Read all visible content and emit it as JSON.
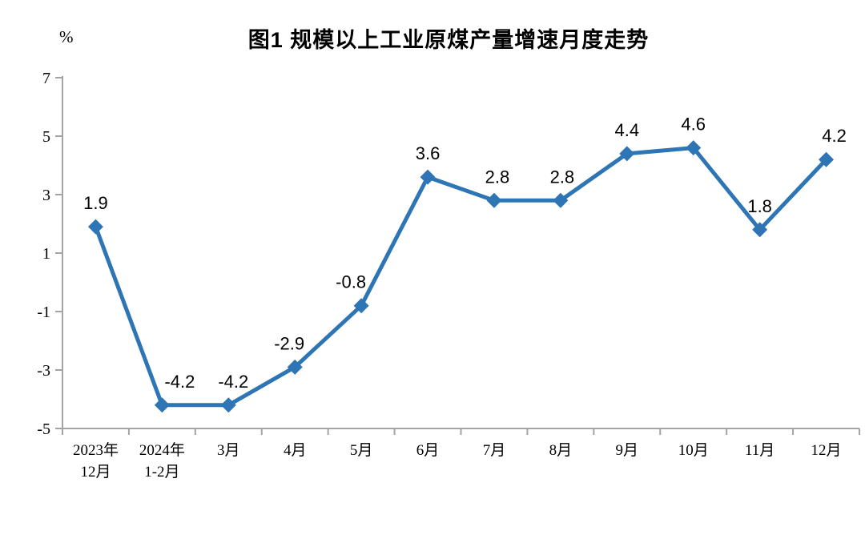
{
  "page": {
    "background": "#FFFFFF"
  },
  "chart_data": {
    "type": "line",
    "title": "图1  规模以上工业原煤产量增速月度走势",
    "ylabel": "%",
    "xlabel": "",
    "categories": [
      "2023年\n12月",
      "2024年\n1-2月",
      "3月",
      "4月",
      "5月",
      "6月",
      "7月",
      "8月",
      "9月",
      "10月",
      "11月",
      "12月"
    ],
    "values": [
      1.9,
      -4.2,
      -4.2,
      -2.9,
      -0.8,
      3.6,
      2.8,
      2.8,
      4.4,
      4.6,
      1.8,
      4.2
    ],
    "labels": [
      "1.9",
      "-4.2",
      "-4.2",
      "-2.9",
      "-0.8",
      "3.6",
      "2.8",
      "2.8",
      "4.4",
      "4.6",
      "1.8",
      "4.2"
    ],
    "ylim": [
      -5,
      7
    ],
    "yticks": [
      7,
      5,
      3,
      1,
      -1,
      -3,
      -5
    ],
    "grid": false,
    "legend": "none",
    "line_color": "#2E75B6",
    "marker": "diamond",
    "axis_color": "#A3A3A3",
    "text_color": "#000000"
  }
}
